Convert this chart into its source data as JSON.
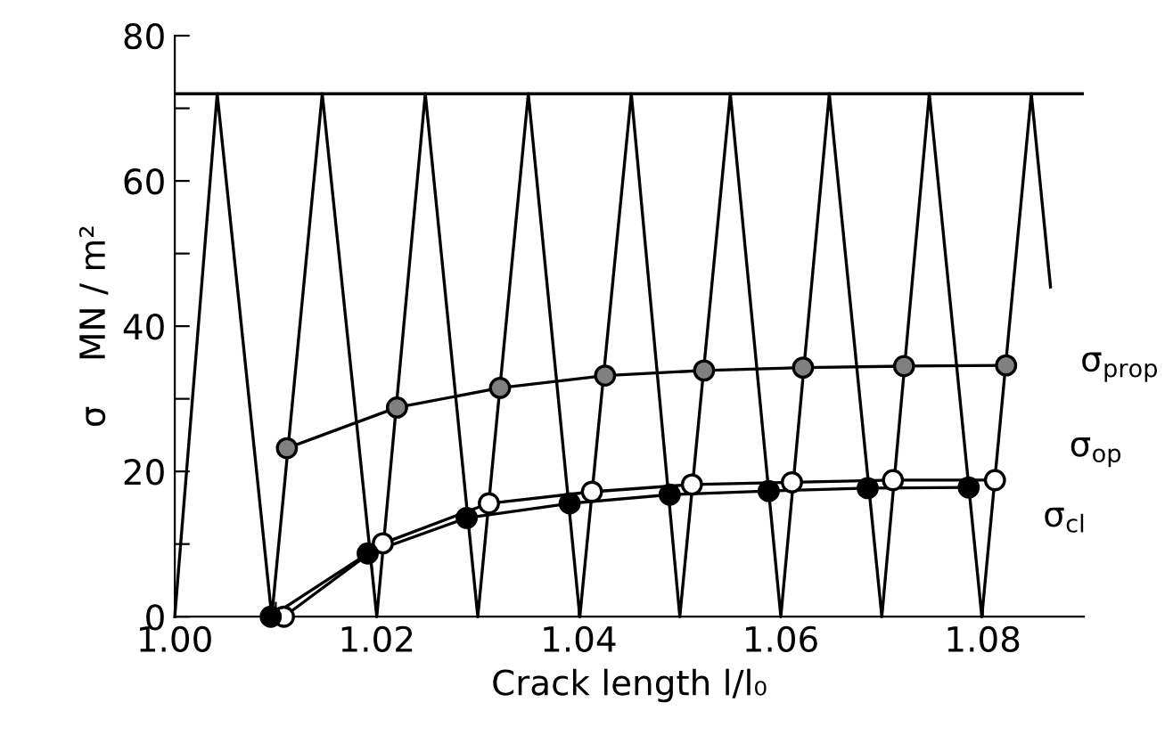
{
  "chart_data": {
    "type": "line",
    "xlabel": "Crack length l/l₀",
    "ylabel": "σ    MN / m²",
    "xlim": [
      1.0,
      1.09
    ],
    "ylim": [
      0,
      80
    ],
    "xticks": [
      {
        "value": 1.0,
        "label": "1.00"
      },
      {
        "value": 1.01,
        "label": null
      },
      {
        "value": 1.02,
        "label": "1.02"
      },
      {
        "value": 1.03,
        "label": null
      },
      {
        "value": 1.04,
        "label": "1.04"
      },
      {
        "value": 1.05,
        "label": null
      },
      {
        "value": 1.06,
        "label": "1.06"
      },
      {
        "value": 1.07,
        "label": null
      },
      {
        "value": 1.08,
        "label": "1.08"
      }
    ],
    "yticks": [
      0,
      {
        "value": 10,
        "label": null
      },
      20,
      {
        "value": 30,
        "label": null
      },
      40,
      {
        "value": 50,
        "label": null
      },
      60,
      {
        "value": 70,
        "label": null
      },
      80
    ],
    "grid": false,
    "legend": "right",
    "ref_lines": [
      {
        "axis": "y",
        "value": 72,
        "color": "#000000",
        "line_style": "solid"
      }
    ],
    "line_style": "solid",
    "series": [
      {
        "color": "#000000",
        "marker": "none",
        "x": [
          1.0,
          1.0042,
          1.0096,
          1.0146,
          1.02,
          1.0248,
          1.03,
          1.035,
          1.0401,
          1.0452,
          1.05,
          1.055,
          1.06,
          1.0648,
          1.07,
          1.0747,
          1.0799,
          1.0848,
          1.0867
        ],
        "values": [
          0,
          72,
          0,
          72,
          0,
          72,
          0,
          72,
          0,
          72,
          0,
          72,
          0,
          72,
          0,
          72,
          0,
          72,
          45.4
        ]
      },
      {
        "name": "σ$_{prop}$",
        "color": "#000000",
        "marker": "circle",
        "colors": [
          "#808080",
          "#808080",
          "#808080",
          "#808080",
          "#808080",
          "#808080",
          "#808080",
          "#808080"
        ],
        "x": [
          1.0111,
          1.022,
          1.0322,
          1.0426,
          1.0524,
          1.0622,
          1.0722,
          1.0823
        ],
        "values": [
          23.2,
          28.8,
          31.5,
          33.2,
          33.9,
          34.3,
          34.5,
          34.6
        ]
      },
      {
        "name": "σ$_{op}$",
        "color": "#000000",
        "marker": "circle",
        "colors": [
          "#ffffff",
          "#ffffff",
          "#ffffff",
          "#ffffff",
          "#ffffff",
          "#ffffff",
          "#ffffff",
          "#ffffff"
        ],
        "x": [
          1.0108,
          1.0206,
          1.0311,
          1.0413,
          1.0512,
          1.0611,
          1.0711,
          1.0812
        ],
        "values": [
          0,
          10.1,
          15.6,
          17.2,
          18.2,
          18.5,
          18.8,
          18.8
        ]
      },
      {
        "name": "σ$_{cl}$",
        "color": "#000000",
        "marker": "circle",
        "colors": [
          "#000000",
          "#000000",
          "#000000",
          "#000000",
          "#000000",
          "#000000",
          "#000000",
          "#000000"
        ],
        "x": [
          1.0095,
          1.0191,
          1.0289,
          1.0391,
          1.049,
          1.0588,
          1.0686,
          1.0786
        ],
        "values": [
          0,
          8.7,
          13.6,
          15.6,
          16.8,
          17.3,
          17.7,
          17.8
        ]
      }
    ]
  }
}
